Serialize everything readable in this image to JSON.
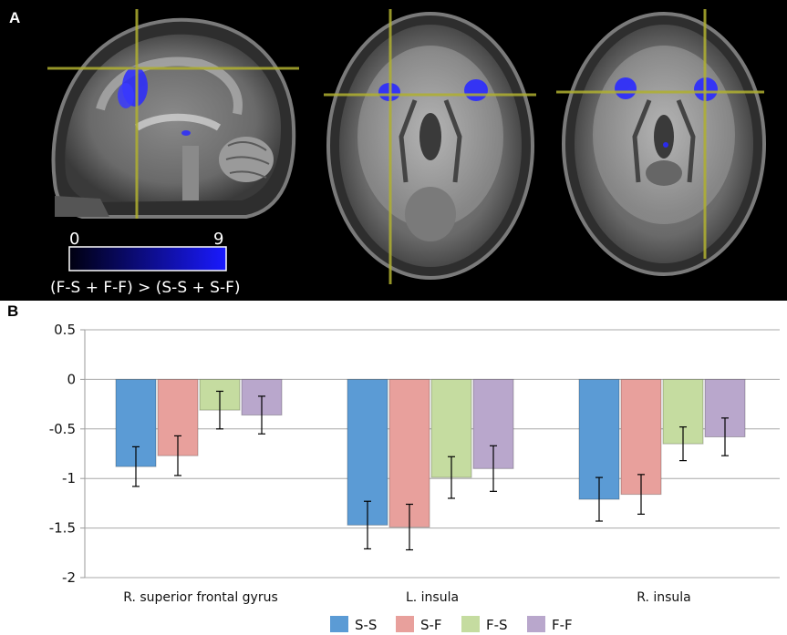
{
  "panels": {
    "a_label": "A",
    "b_label": "B"
  },
  "brain_figure": {
    "colorbar": {
      "min_label": "0",
      "max_label": "9",
      "contrast_label": "(F-S + F-F) > (S-S + S-F)",
      "gradient_colors": [
        "#000010",
        "#1a1aff"
      ]
    },
    "crosshair_color": "#b0b030",
    "activation_color": "#2a2aff"
  },
  "chart_data": {
    "type": "bar",
    "categories": [
      "R. superior frontal gyrus",
      "L. insula",
      "R. insula"
    ],
    "series": [
      {
        "name": "S-S",
        "color": "#5b9bd5",
        "values": [
          -0.88,
          -1.47,
          -1.21
        ],
        "errors": [
          0.2,
          0.24,
          0.22
        ]
      },
      {
        "name": "S-F",
        "color": "#e8a09c",
        "values": [
          -0.77,
          -1.49,
          -1.16
        ],
        "errors": [
          0.2,
          0.23,
          0.2
        ]
      },
      {
        "name": "F-S",
        "color": "#c5dca0",
        "values": [
          -0.31,
          -0.99,
          -0.65
        ],
        "errors": [
          0.19,
          0.21,
          0.17
        ]
      },
      {
        "name": "F-F",
        "color": "#b9a7cc",
        "values": [
          -0.36,
          -0.9,
          -0.58
        ],
        "errors": [
          0.19,
          0.23,
          0.19
        ]
      }
    ],
    "yticks": [
      "0.5",
      "0",
      "-0.5",
      "-1",
      "-1.5",
      "-2"
    ],
    "ytick_values": [
      0.5,
      0,
      -0.5,
      -1,
      -1.5,
      -2
    ],
    "ylim": [
      -2,
      0.5
    ],
    "grid": true,
    "legend_position": "bottom"
  }
}
